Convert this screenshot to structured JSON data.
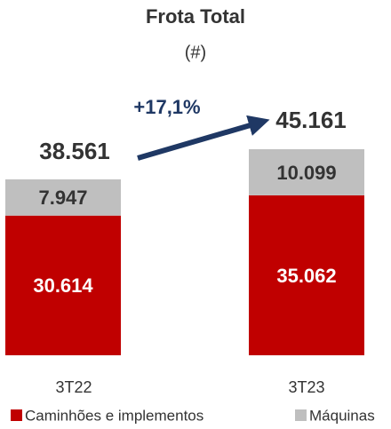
{
  "chart_data": {
    "type": "stacked_bar",
    "title": "Frota Total",
    "subtitle": "(#)",
    "categories": [
      "3T22",
      "3T23"
    ],
    "series": [
      {
        "name": "Caminhões e implementos",
        "color": "#c00000",
        "values": [
          30614,
          35062
        ],
        "value_labels": [
          "30.614",
          "35.062"
        ]
      },
      {
        "name": "Máquinas",
        "color": "#bfbfbf",
        "values": [
          7947,
          10099
        ],
        "value_labels": [
          "7.947",
          "10.099"
        ]
      }
    ],
    "totals": {
      "values": [
        38561,
        45161
      ],
      "value_labels": [
        "38.561",
        "45.161"
      ]
    },
    "annotation": "+17,1%"
  }
}
